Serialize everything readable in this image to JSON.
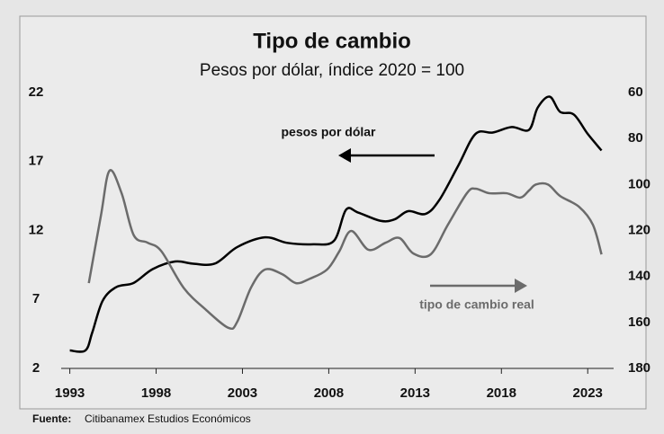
{
  "chart_data": {
    "type": "line",
    "title": "Tipo de cambio",
    "subtitle": "Pesos por dólar, índice 2020 = 100",
    "source_label": "Fuente:",
    "source": "Citibanamex Estudios Económicos",
    "xlim": [
      1992.5,
      2024.5
    ],
    "xticks": [
      1993,
      1998,
      2003,
      2008,
      2013,
      2018,
      2023
    ],
    "ylim": [
      2,
      22
    ],
    "yticks": [
      2,
      7,
      12,
      17,
      22
    ],
    "y2lim": [
      180,
      60
    ],
    "y2ticks": [
      60,
      80,
      100,
      120,
      140,
      160,
      180
    ],
    "series": [
      {
        "name": "pesos por dólar",
        "color": "#000000",
        "x": [
          1993,
          1993.9,
          1994.3,
          1994.9,
          1995.7,
          1996.7,
          1997.8,
          1999.1,
          2000.1,
          2001.4,
          2002.7,
          2004.3,
          2005.6,
          2007.1,
          2008.3,
          2009.0,
          2009.7,
          2011.0,
          2011.8,
          2012.6,
          2013.6,
          2014.4,
          2015.5,
          2016.5,
          2017.5,
          2018.6,
          2019.6,
          2020.1,
          2020.8,
          2021.4,
          2022.2,
          2023.0,
          2023.8
        ],
        "values": [
          3.3,
          3.3,
          4.6,
          6.9,
          7.9,
          8.2,
          9.2,
          9.75,
          9.6,
          9.6,
          10.8,
          11.5,
          11.1,
          11.0,
          11.25,
          13.5,
          13.3,
          12.7,
          12.8,
          13.4,
          13.2,
          14.2,
          16.7,
          19.0,
          19.1,
          19.5,
          19.3,
          20.9,
          21.7,
          20.6,
          20.4,
          19.0,
          17.8
        ]
      },
      {
        "name": "tipo de cambio real",
        "color": "#6b6b6b",
        "axis": "y2",
        "x": [
          1994.1,
          1994.8,
          1995.3,
          1996.0,
          1996.7,
          1997.5,
          1998.3,
          1999.6,
          2000.9,
          2002.2,
          2002.7,
          2003.5,
          2004.3,
          2005.3,
          2006.1,
          2006.9,
          2007.9,
          2008.6,
          2009.3,
          2010.3,
          2011.3,
          2012.1,
          2012.9,
          2013.9,
          2014.9,
          2016.0,
          2016.5,
          2017.3,
          2018.3,
          2019.1,
          2019.6,
          2020.0,
          2020.7,
          2021.4,
          2022.5,
          2023.3,
          2023.8
        ],
        "values": [
          142.9,
          113.6,
          94,
          103.8,
          122,
          125.3,
          129,
          145,
          154.6,
          162.4,
          159.7,
          144.8,
          137,
          139,
          142.9,
          141,
          137,
          129.2,
          120.2,
          128.4,
          125.3,
          123.3,
          130,
          130.4,
          117.5,
          103.8,
          101.8,
          103.8,
          103.8,
          105.7,
          102.6,
          100,
          100,
          105,
          109.7,
          117.5,
          130.4
        ]
      }
    ]
  }
}
